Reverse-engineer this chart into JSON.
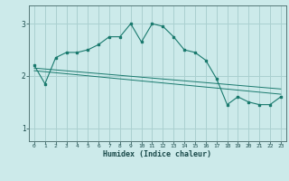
{
  "xlabel": "Humidex (Indice chaleur)",
  "ylabel": "",
  "bg_color": "#cceaea",
  "grid_color": "#aad0d0",
  "line_color": "#1a7a6e",
  "xlim": [
    -0.5,
    23.5
  ],
  "ylim": [
    0.75,
    3.35
  ],
  "yticks": [
    1,
    2,
    3
  ],
  "xticks": [
    0,
    1,
    2,
    3,
    4,
    5,
    6,
    7,
    8,
    9,
    10,
    11,
    12,
    13,
    14,
    15,
    16,
    17,
    18,
    19,
    20,
    21,
    22,
    23
  ],
  "series": [
    {
      "x": [
        0,
        1,
        2,
        3,
        4,
        5,
        6,
        7,
        8,
        9,
        10,
        11,
        12,
        13,
        14,
        15,
        16,
        17,
        18,
        19,
        20,
        21,
        22,
        23
      ],
      "y": [
        2.2,
        1.85,
        2.35,
        2.45,
        2.45,
        2.5,
        2.6,
        2.75,
        2.75,
        3.0,
        2.65,
        3.0,
        2.95,
        2.75,
        2.5,
        2.45,
        2.3,
        1.95,
        1.45,
        1.6,
        1.5,
        1.45,
        1.45,
        1.6
      ]
    },
    {
      "x": [
        0,
        23
      ],
      "y": [
        2.15,
        1.75
      ]
    },
    {
      "x": [
        0,
        23
      ],
      "y": [
        2.1,
        1.65
      ]
    }
  ]
}
